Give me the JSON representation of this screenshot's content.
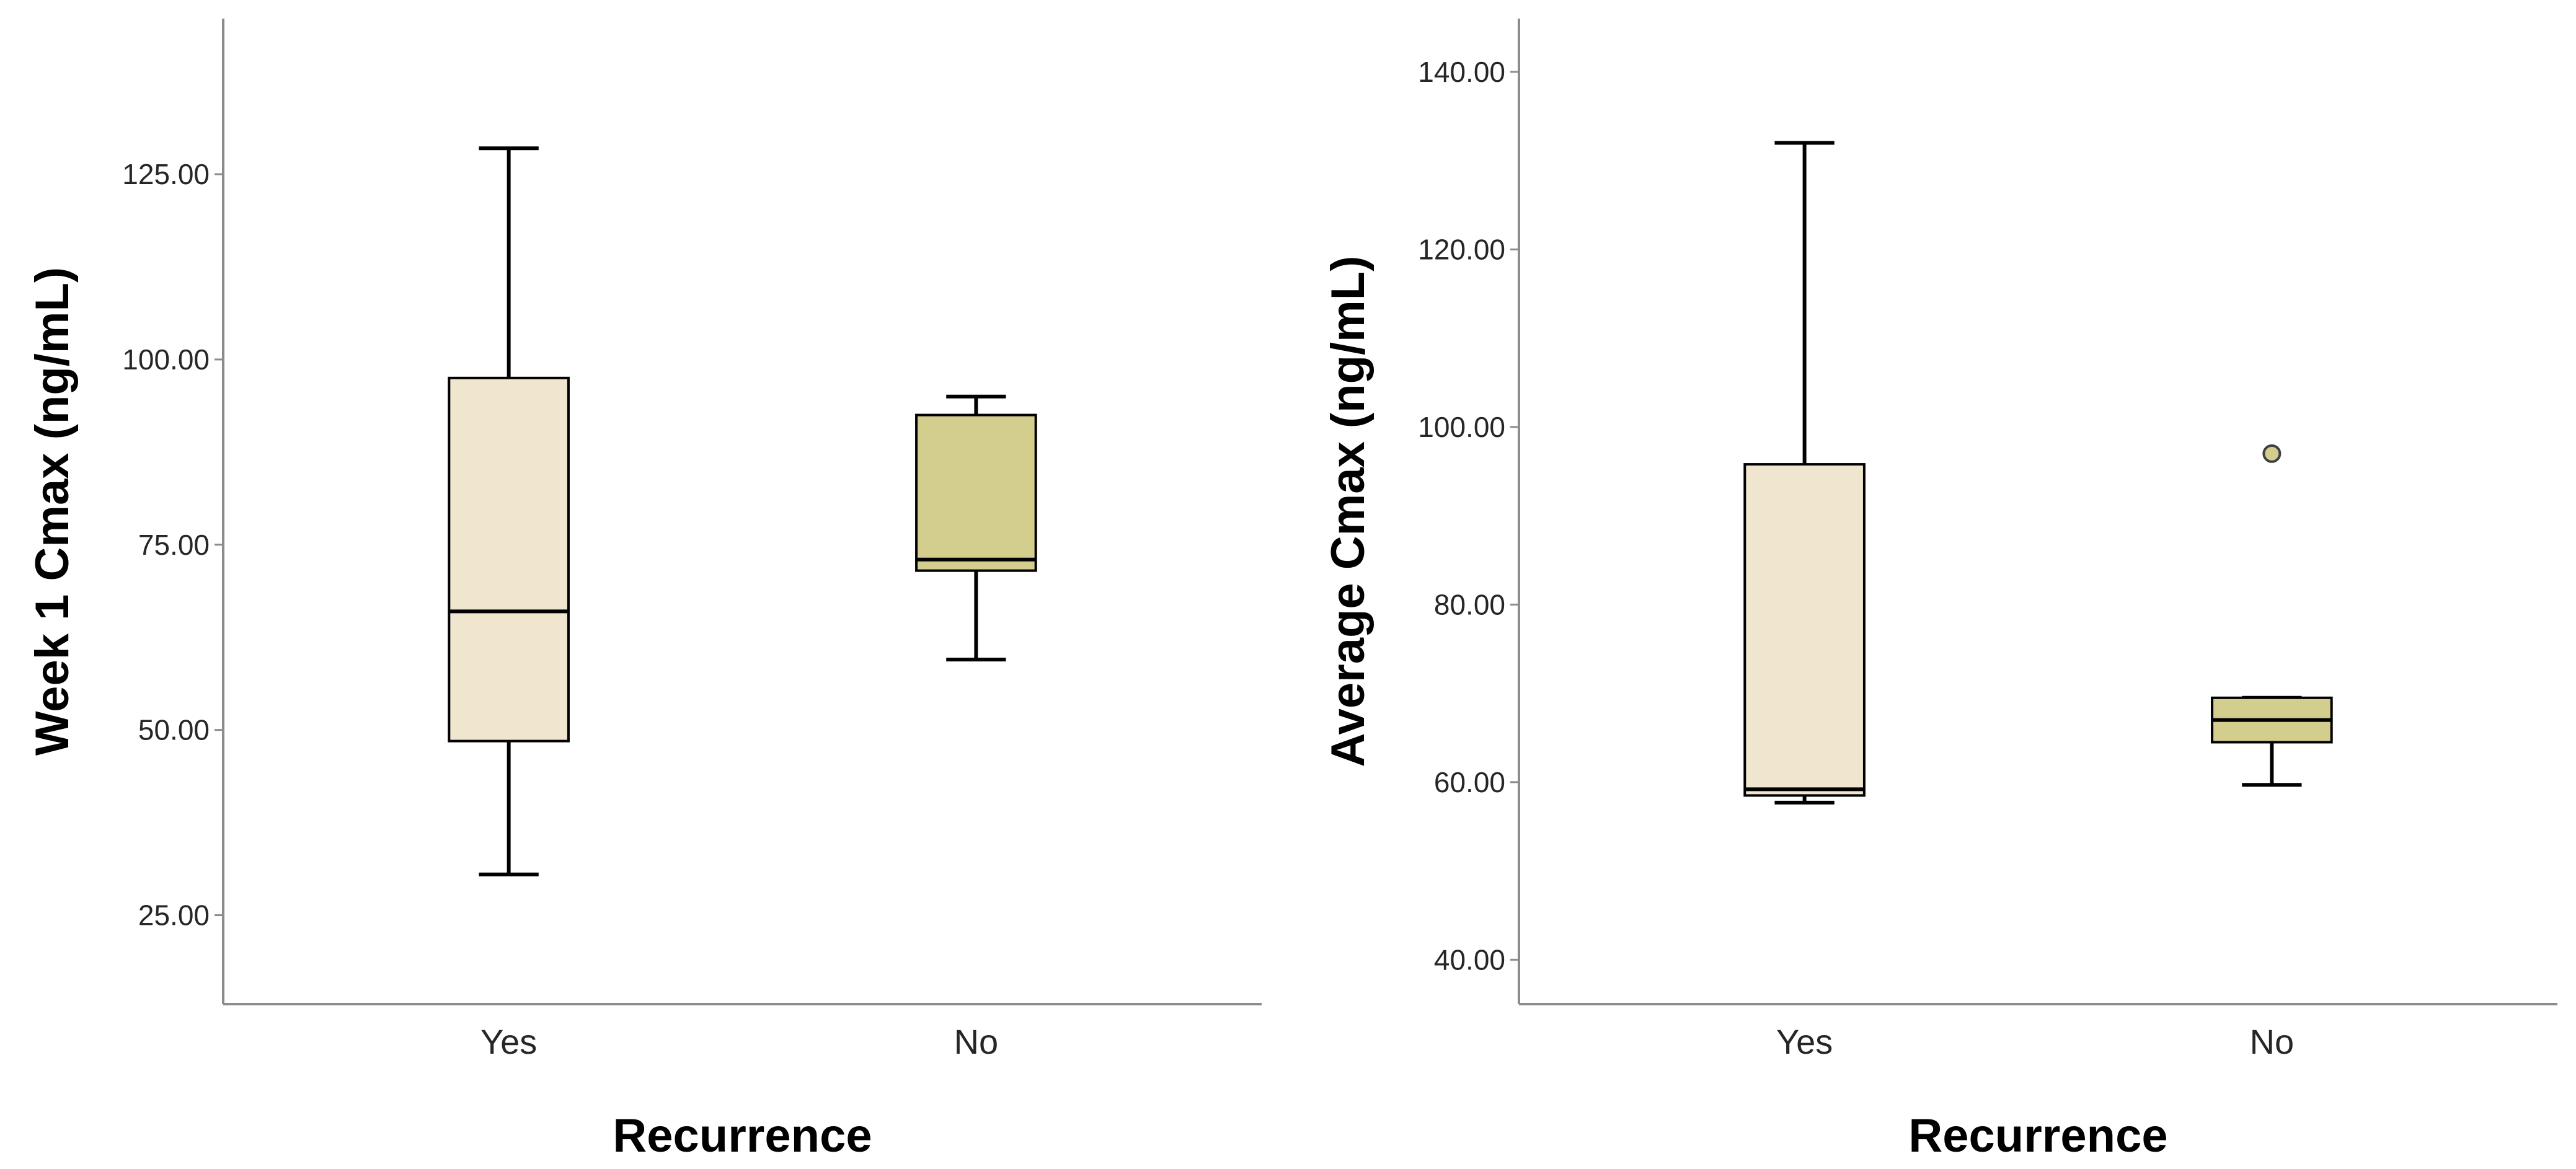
{
  "chart_data": [
    {
      "type": "boxplot",
      "xlabel": "Recurrence",
      "ylabel": "Week 1 Cmax (ng/mL)",
      "categories": [
        "Yes",
        "No"
      ],
      "ylim": [
        13,
        146
      ],
      "yticks": [
        25,
        50,
        75,
        100,
        125
      ],
      "ytick_labels": [
        "25.00",
        "50.00",
        "75.00",
        "100.00",
        "125.00"
      ],
      "grid": false,
      "boxes": [
        {
          "category": "Yes",
          "whisker_low": 30.5,
          "q1": 48.5,
          "median": 66.0,
          "q3": 97.5,
          "whisker_high": 128.5,
          "outliers": []
        },
        {
          "category": "No",
          "whisker_low": 59.5,
          "q1": 71.5,
          "median": 73.0,
          "q3": 92.5,
          "whisker_high": 95.0,
          "outliers": []
        }
      ]
    },
    {
      "type": "boxplot",
      "xlabel": "Recurrence",
      "ylabel": "Average Cmax (ng/mL)",
      "categories": [
        "Yes",
        "No"
      ],
      "ylim": [
        35,
        146
      ],
      "yticks": [
        40,
        60,
        80,
        100,
        120,
        140
      ],
      "ytick_labels": [
        "40.00",
        "60.00",
        "80.00",
        "100.00",
        "120.00",
        "140.00"
      ],
      "grid": false,
      "boxes": [
        {
          "category": "Yes",
          "whisker_low": 57.7,
          "q1": 58.5,
          "median": 59.2,
          "q3": 95.8,
          "whisker_high": 132.0,
          "outliers": []
        },
        {
          "category": "No",
          "whisker_low": 59.7,
          "q1": 64.5,
          "median": 67.0,
          "q3": 69.5,
          "whisker_high": 69.5,
          "outliers": [
            97.0
          ]
        }
      ]
    }
  ],
  "colors": {
    "yes_fill": "#f0e6d0",
    "no_fill": "#d3cd8e",
    "axis_line": "#8c8c8c",
    "box_stroke": "#000000"
  }
}
